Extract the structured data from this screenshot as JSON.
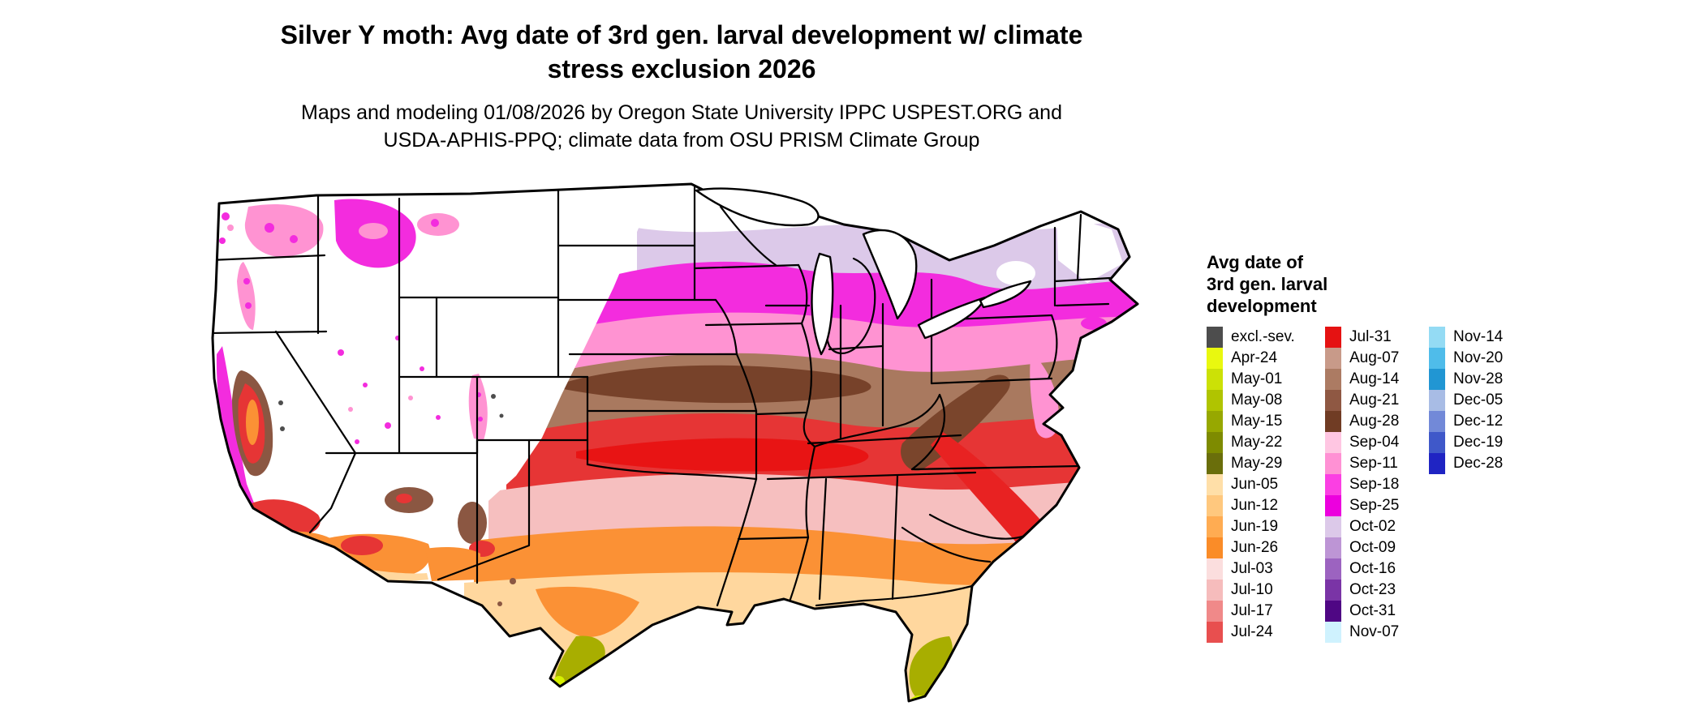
{
  "title": {
    "line1": "Silver Y moth: Avg date of 3rd gen. larval development w/ climate",
    "line2": "stress exclusion 2026"
  },
  "subtitle": {
    "line1": "Maps and modeling 01/08/2026 by Oregon State University IPPC USPEST.ORG and",
    "line2": "USDA-APHIS-PPQ; climate data from OSU PRISM Climate Group"
  },
  "legend": {
    "title_lines": [
      "Avg date of",
      "3rd gen. larval",
      "development"
    ],
    "columns": [
      {
        "entries": [
          {
            "label": "excl.-sev.",
            "color": "#4D4D4D"
          },
          {
            "label": "Apr-24",
            "color": "#E9F80F"
          },
          {
            "label": "May-01",
            "color": "#CCE106"
          },
          {
            "label": "May-08",
            "color": "#B0C400"
          },
          {
            "label": "May-15",
            "color": "#97A800"
          },
          {
            "label": "May-22",
            "color": "#7E8B00"
          },
          {
            "label": "May-29",
            "color": "#6A6E0B"
          },
          {
            "label": "Jun-05",
            "color": "#FFDFA8"
          },
          {
            "label": "Jun-12",
            "color": "#FFC87E"
          },
          {
            "label": "Jun-19",
            "color": "#FFAC52"
          },
          {
            "label": "Jun-26",
            "color": "#FA8C28"
          },
          {
            "label": "Jul-03",
            "color": "#FBDEDE"
          },
          {
            "label": "Jul-10",
            "color": "#F6BCBC"
          },
          {
            "label": "Jul-17",
            "color": "#F08989"
          },
          {
            "label": "Jul-24",
            "color": "#E84F4F"
          }
        ]
      },
      {
        "entries": [
          {
            "label": "Jul-31",
            "color": "#E51212"
          },
          {
            "label": "Aug-07",
            "color": "#C89A89"
          },
          {
            "label": "Aug-14",
            "color": "#AC7B63"
          },
          {
            "label": "Aug-21",
            "color": "#8F5843"
          },
          {
            "label": "Aug-28",
            "color": "#703C24"
          },
          {
            "label": "Sep-04",
            "color": "#FFC6E2"
          },
          {
            "label": "Sep-11",
            "color": "#FF91D4"
          },
          {
            "label": "Sep-18",
            "color": "#FB3FE3"
          },
          {
            "label": "Sep-25",
            "color": "#EC00DE"
          },
          {
            "label": "Oct-02",
            "color": "#DCC9E9"
          },
          {
            "label": "Oct-09",
            "color": "#BD95D5"
          },
          {
            "label": "Oct-16",
            "color": "#9C63C0"
          },
          {
            "label": "Oct-23",
            "color": "#7A34A6"
          },
          {
            "label": "Oct-31",
            "color": "#4F0784"
          },
          {
            "label": "Nov-07",
            "color": "#CFF2FE"
          }
        ]
      },
      {
        "entries": [
          {
            "label": "Nov-14",
            "color": "#94DBF4"
          },
          {
            "label": "Nov-20",
            "color": "#4FBCEA"
          },
          {
            "label": "Nov-28",
            "color": "#2196D3"
          },
          {
            "label": "Dec-05",
            "color": "#A8BCE5"
          },
          {
            "label": "Dec-12",
            "color": "#7289D8"
          },
          {
            "label": "Dec-19",
            "color": "#3F58C9"
          },
          {
            "label": "Dec-28",
            "color": "#1F24C3"
          }
        ]
      }
    ]
  },
  "map": {
    "land_fill": "#FFFFFF",
    "border_color": "#000000",
    "band_colors_north_to_south": [
      "#FFFFFF",
      "#DCC9E9",
      "#F32CDE",
      "#FF93D2",
      "#A9795F",
      "#E63535",
      "#F6BFBF",
      "#FB9135",
      "#FFD79E",
      "#A8AE00",
      "#D6F000"
    ]
  }
}
